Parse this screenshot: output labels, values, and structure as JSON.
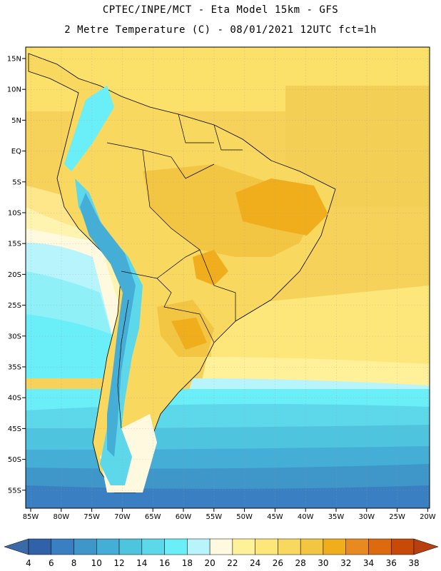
{
  "title_line1": "CPTEC/INPE/MCT -  Eta Model 15km - GFS",
  "title_line2": "2 Metre Temperature (C) - 08/01/2021 12UTC fct=1h",
  "lat_labels": [
    "15N",
    "10N",
    "5N",
    "EQ",
    "5S",
    "10S",
    "15S",
    "20S",
    "25S",
    "30S",
    "35S",
    "40S",
    "45S",
    "50S",
    "55S"
  ],
  "lon_labels": [
    "85W",
    "80W",
    "75W",
    "70W",
    "65W",
    "60W",
    "55W",
    "50W",
    "45W",
    "40W",
    "35W",
    "30W",
    "25W",
    "20W"
  ],
  "colorbar": {
    "labels": [
      "4",
      "6",
      "8",
      "10",
      "12",
      "14",
      "16",
      "18",
      "20",
      "22",
      "24",
      "26",
      "28",
      "30",
      "32",
      "34",
      "36",
      "38"
    ],
    "colors": [
      "#2f62a8",
      "#3a7fc2",
      "#3f96c9",
      "#45aed6",
      "#4fc4df",
      "#5dd8ea",
      "#6aeef8",
      "#b8f4fb",
      "#fff9e0",
      "#fff19a",
      "#fde77a",
      "#f8d85e",
      "#f2c543",
      "#f0ad1c",
      "#e88a1f",
      "#de6a10",
      "#c84a08"
    ],
    "low_color": "#3a6aa8",
    "high_color": "#b8400e"
  }
}
